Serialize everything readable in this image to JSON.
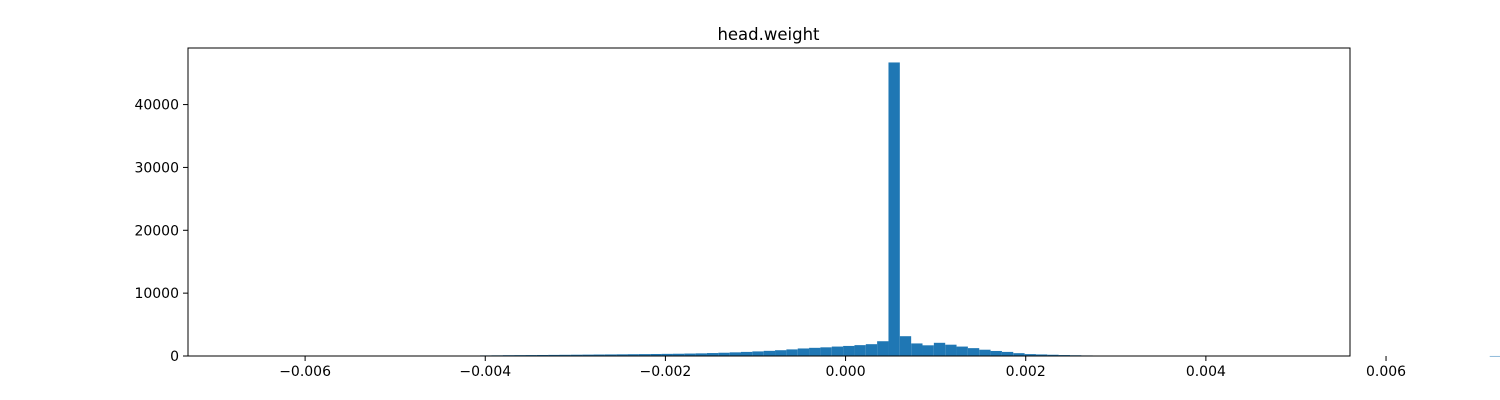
{
  "chart_data": {
    "type": "bar",
    "title": "head.weight",
    "xlabel": "",
    "ylabel": "",
    "xlim": [
      -0.0073,
      0.0056
    ],
    "ylim": [
      0,
      49000
    ],
    "xticks": [
      -0.006,
      -0.004,
      -0.002,
      0.0,
      0.002,
      0.004,
      0.006
    ],
    "xtick_labels": [
      "−0.006",
      "−0.004",
      "−0.002",
      "0.000",
      "0.002",
      "0.004",
      "0.006"
    ],
    "yticks": [
      0,
      10000,
      20000,
      30000,
      40000
    ],
    "ytick_labels": [
      "0",
      "10000",
      "20000",
      "30000",
      "40000"
    ],
    "grid": false,
    "bar_color": "#1f77b4",
    "bins": {
      "start": -0.00708,
      "width": 0.00012594,
      "counts": [
        10,
        0,
        0,
        0,
        0,
        0,
        0,
        0,
        0,
        0,
        0,
        0,
        0,
        0,
        0,
        0,
        0,
        0,
        0,
        0,
        0,
        0,
        55,
        75,
        95,
        110,
        130,
        140,
        150,
        160,
        175,
        190,
        205,
        220,
        235,
        250,
        265,
        285,
        300,
        320,
        340,
        360,
        390,
        420,
        470,
        520,
        580,
        650,
        730,
        820,
        920,
        1050,
        1200,
        1300,
        1380,
        1500,
        1600,
        1730,
        1880,
        2350,
        46700,
        3150,
        2000,
        1700,
        2100,
        1800,
        1500,
        1250,
        1000,
        800,
        650,
        450,
        300,
        250,
        200,
        150,
        120,
        90,
        70,
        50,
        35,
        20,
        15,
        10,
        8,
        5,
        3,
        2,
        0,
        0,
        0,
        0,
        0,
        0,
        0,
        0,
        0,
        0,
        0,
        0,
        0,
        0,
        0,
        0,
        0,
        0,
        0,
        0,
        0,
        0,
        0,
        0,
        0,
        5
      ]
    }
  }
}
